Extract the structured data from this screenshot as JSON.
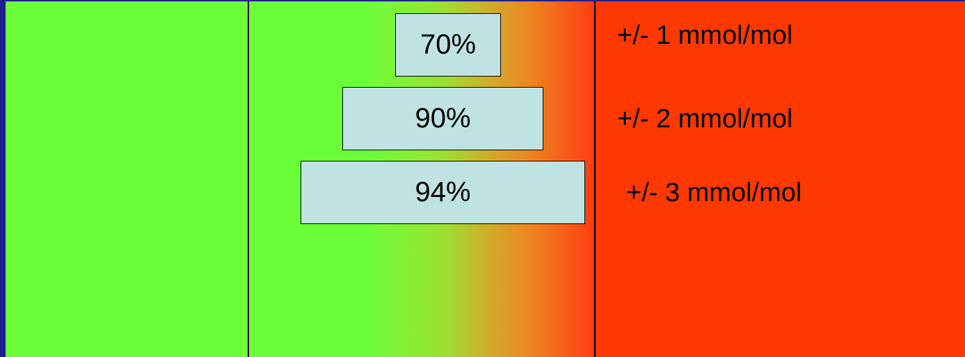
{
  "colors": {
    "background": "#1c1f8f",
    "green": "#6bff3a",
    "red": "#ff3800",
    "box": "#bfe2e3"
  },
  "pyramid": [
    {
      "percent": "70%",
      "tolerance": "+/- 1 mmol/mol"
    },
    {
      "percent": "90%",
      "tolerance": "+/- 2 mmol/mol"
    },
    {
      "percent": "94%",
      "tolerance": "+/- 3 mmol/mol"
    }
  ]
}
